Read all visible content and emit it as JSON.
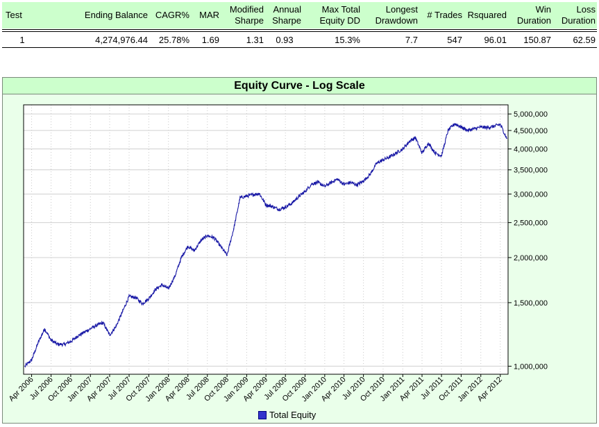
{
  "stats": {
    "headers": [
      "Test",
      "Ending Balance",
      "CAGR%",
      "MAR",
      "Modified\nSharpe",
      "Annual\nSharpe",
      "Max Total\nEquity DD",
      "Longest\nDrawdown",
      "# Trades",
      "Rsquared",
      "Win\nDuration",
      "Loss\nDuration"
    ],
    "rows": [
      [
        "1",
        "4,274,976.44",
        "25.78%",
        "1.69",
        "1.31",
        "0.93",
        "15.3%",
        "7.7",
        "547",
        "96.01",
        "150.87",
        "62.59"
      ]
    ]
  },
  "chart_data": {
    "type": "line",
    "title": "Equity Curve - Log Scale",
    "scale": "log",
    "grid": true,
    "legend_position": "bottom-center",
    "ylim": [
      950000,
      5300000
    ],
    "y_ticks": [
      1000000,
      1500000,
      2000000,
      2500000,
      3000000,
      3500000,
      4000000,
      4500000,
      5000000
    ],
    "y_tick_labels": [
      "1,000,000",
      "1,500,000",
      "2,000,000",
      "2,500,000",
      "3,000,000",
      "3,500,000",
      "4,000,000",
      "4,500,000",
      "5,000,000"
    ],
    "x_ticks": [
      "2006-04",
      "2006-07",
      "2006-10",
      "2007-01",
      "2007-04",
      "2007-07",
      "2007-10",
      "2008-01",
      "2008-04",
      "2008-07",
      "2008-10",
      "2009-01",
      "2009-04",
      "2009-07",
      "2009-10",
      "2010-01",
      "2010-04",
      "2010-07",
      "2010-10",
      "2011-01",
      "2011-04",
      "2011-07",
      "2011-10",
      "2012-01",
      "2012-04"
    ],
    "x_tick_labels": [
      "Apr 2006",
      "Jul 2006",
      "Oct 2006",
      "Jan 2007",
      "Apr 2007",
      "Jul 2007",
      "Oct 2007",
      "Jan 2008",
      "Apr 2008",
      "Jul 2008",
      "Oct 2008",
      "Jan 2009",
      "Apr 2009",
      "Jul 2009",
      "Oct 2009",
      "Jan 2010",
      "Apr 2010",
      "Jul 2010",
      "Oct 2010",
      "Jan 2011",
      "Apr 2011",
      "Jul 2011",
      "Oct 2011",
      "Jan 2012",
      "Apr 2012"
    ],
    "series": [
      {
        "name": "Total Equity",
        "color": "#1a1aa6",
        "x": [
          "2006-03",
          "2006-04",
          "2006-05",
          "2006-06",
          "2006-07",
          "2006-08",
          "2006-09",
          "2006-10",
          "2006-11",
          "2006-12",
          "2007-01",
          "2007-02",
          "2007-03",
          "2007-04",
          "2007-05",
          "2007-06",
          "2007-07",
          "2007-08",
          "2007-09",
          "2007-10",
          "2007-11",
          "2007-12",
          "2008-01",
          "2008-02",
          "2008-03",
          "2008-04",
          "2008-05",
          "2008-06",
          "2008-07",
          "2008-08",
          "2008-09",
          "2008-10",
          "2008-11",
          "2008-12",
          "2009-01",
          "2009-02",
          "2009-03",
          "2009-04",
          "2009-05",
          "2009-06",
          "2009-07",
          "2009-08",
          "2009-09",
          "2009-10",
          "2009-11",
          "2009-12",
          "2010-01",
          "2010-02",
          "2010-03",
          "2010-04",
          "2010-05",
          "2010-06",
          "2010-07",
          "2010-08",
          "2010-09",
          "2010-10",
          "2010-11",
          "2010-12",
          "2011-01",
          "2011-02",
          "2011-03",
          "2011-04",
          "2011-05",
          "2011-06",
          "2011-07",
          "2011-08",
          "2011-09",
          "2011-10",
          "2011-11",
          "2011-12",
          "2012-01",
          "2012-02",
          "2012-03",
          "2012-04",
          "2012-05"
        ],
        "values": [
          1000000,
          1040000,
          1160000,
          1270000,
          1180000,
          1150000,
          1150000,
          1170000,
          1210000,
          1240000,
          1270000,
          1300000,
          1320000,
          1220000,
          1290000,
          1420000,
          1560000,
          1550000,
          1490000,
          1540000,
          1630000,
          1680000,
          1640000,
          1780000,
          2000000,
          2150000,
          2090000,
          2230000,
          2300000,
          2270000,
          2150000,
          2030000,
          2400000,
          2930000,
          2960000,
          2990000,
          3010000,
          2800000,
          2770000,
          2720000,
          2760000,
          2830000,
          2950000,
          3050000,
          3200000,
          3230000,
          3150000,
          3230000,
          3300000,
          3190000,
          3230000,
          3180000,
          3260000,
          3400000,
          3650000,
          3730000,
          3800000,
          3900000,
          4000000,
          4200000,
          4300000,
          3900000,
          4150000,
          3900000,
          3830000,
          4500000,
          4700000,
          4600000,
          4500000,
          4550000,
          4600000,
          4580000,
          4620000,
          4680000,
          4280000
        ]
      }
    ]
  }
}
